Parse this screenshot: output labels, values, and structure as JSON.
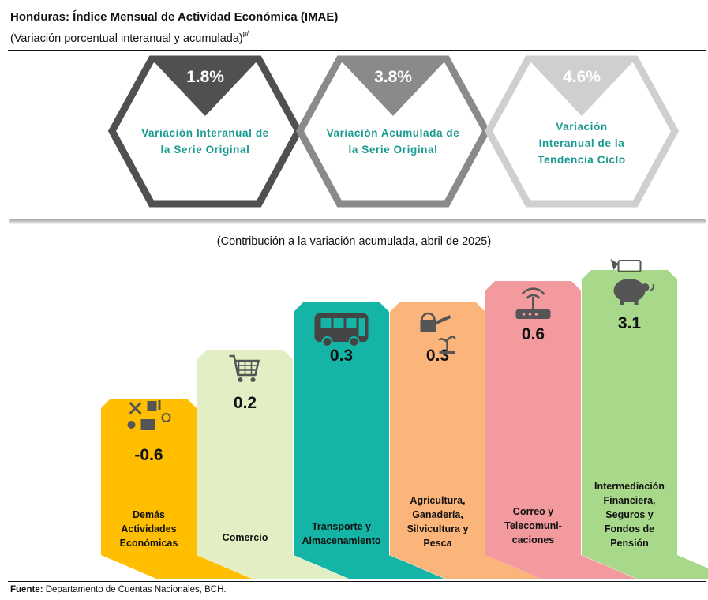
{
  "header": {
    "title": "Honduras: Índice Mensual de Actividad Económica (IMAE)",
    "subtitle": "(Variación porcentual interanual y acumulada)",
    "subtitle_note": "p/"
  },
  "indicators": [
    {
      "value": "1.8%",
      "label_lines": [
        "Variación Interanual de",
        "la Serie Original"
      ],
      "color": "#505050"
    },
    {
      "value": "3.8%",
      "label_lines": [
        "Variación Acumulada de",
        "la Serie Original"
      ],
      "color": "#8a8a8a"
    },
    {
      "value": "4.6%",
      "label_lines": [
        "Variación",
        "Interanual de la",
        "Tendencia Ciclo"
      ],
      "color": "#cfcfcf"
    }
  ],
  "label_color": "#19998f",
  "chart_data": {
    "type": "bar",
    "title": "(Contribución  a la variación acumulada, abril de 2025)",
    "categories": [
      "Demás Actividades Económicas",
      "Comercio",
      "Transporte y Almacenamiento",
      "Agricultura, Ganadería, Silvicultura y Pesca",
      "Correo y Telecomunicaciones",
      "Intermediación Financiera, Seguros y Fondos de Pensión"
    ],
    "values": [
      -0.6,
      0.2,
      0.3,
      0.3,
      0.6,
      3.1
    ],
    "value_labels": [
      "-0.6",
      "0.2",
      "0.3",
      "0.3",
      "0.6",
      "3.1"
    ],
    "label_lines": [
      [
        "Demás",
        "Actividades",
        "Económicas"
      ],
      [
        "Comercio"
      ],
      [
        "Transporte y",
        "Almacenamiento"
      ],
      [
        "Agricultura,",
        "Ganadería,",
        "Silvicultura y",
        "Pesca"
      ],
      [
        "Correo y",
        "Telecomuni-",
        "caciones"
      ],
      [
        "Intermediación",
        "Financiera,",
        "Seguros y",
        "Fondos de",
        "Pensión"
      ]
    ],
    "colors": [
      "#ffbf00",
      "#e2efc4",
      "#14b5a6",
      "#fbb57a",
      "#f29a9e",
      "#a8d88a"
    ],
    "icons": [
      "industry-icons",
      "shopping-cart-icon",
      "bus-icon",
      "watering-can-icon",
      "router-icon",
      "piggy-bank-icon"
    ]
  },
  "footer": {
    "source_label": "Fuente:",
    "source_text": "Departamento de Cuentas Nacionales, BCH."
  }
}
